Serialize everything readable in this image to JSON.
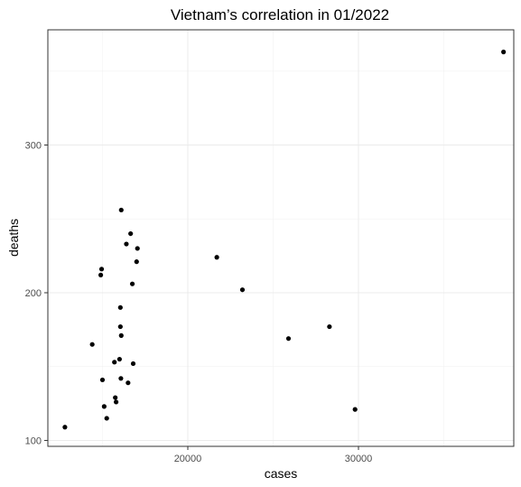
{
  "chart_data": {
    "type": "scatter",
    "title": "Vietnam’s correlation in 01/2022",
    "xlabel": "cases",
    "ylabel": "deaths",
    "xlim": [
      11800,
      39100
    ],
    "ylim": [
      96,
      378
    ],
    "x_ticks": [
      20000,
      30000
    ],
    "x_tick_labels": [
      "20000",
      "30000"
    ],
    "y_ticks": [
      100,
      200,
      300
    ],
    "y_tick_labels": [
      "100",
      "200",
      "300"
    ],
    "grid": true,
    "theme": "bw",
    "point_color": "#000000",
    "points": [
      {
        "x": 12800,
        "y": 109
      },
      {
        "x": 14400,
        "y": 165
      },
      {
        "x": 14900,
        "y": 212
      },
      {
        "x": 14950,
        "y": 216
      },
      {
        "x": 15000,
        "y": 141
      },
      {
        "x": 15100,
        "y": 123
      },
      {
        "x": 15250,
        "y": 115
      },
      {
        "x": 15700,
        "y": 153
      },
      {
        "x": 15750,
        "y": 129
      },
      {
        "x": 15800,
        "y": 126
      },
      {
        "x": 16000,
        "y": 155
      },
      {
        "x": 16050,
        "y": 190
      },
      {
        "x": 16050,
        "y": 177
      },
      {
        "x": 16080,
        "y": 142
      },
      {
        "x": 16100,
        "y": 171
      },
      {
        "x": 16100,
        "y": 256
      },
      {
        "x": 16400,
        "y": 233
      },
      {
        "x": 16500,
        "y": 139
      },
      {
        "x": 16650,
        "y": 240
      },
      {
        "x": 16750,
        "y": 206
      },
      {
        "x": 16800,
        "y": 152
      },
      {
        "x": 17000,
        "y": 221
      },
      {
        "x": 17050,
        "y": 230
      },
      {
        "x": 21700,
        "y": 224
      },
      {
        "x": 23200,
        "y": 202
      },
      {
        "x": 25900,
        "y": 169
      },
      {
        "x": 28300,
        "y": 177
      },
      {
        "x": 29800,
        "y": 121
      },
      {
        "x": 38500,
        "y": 363
      }
    ]
  }
}
